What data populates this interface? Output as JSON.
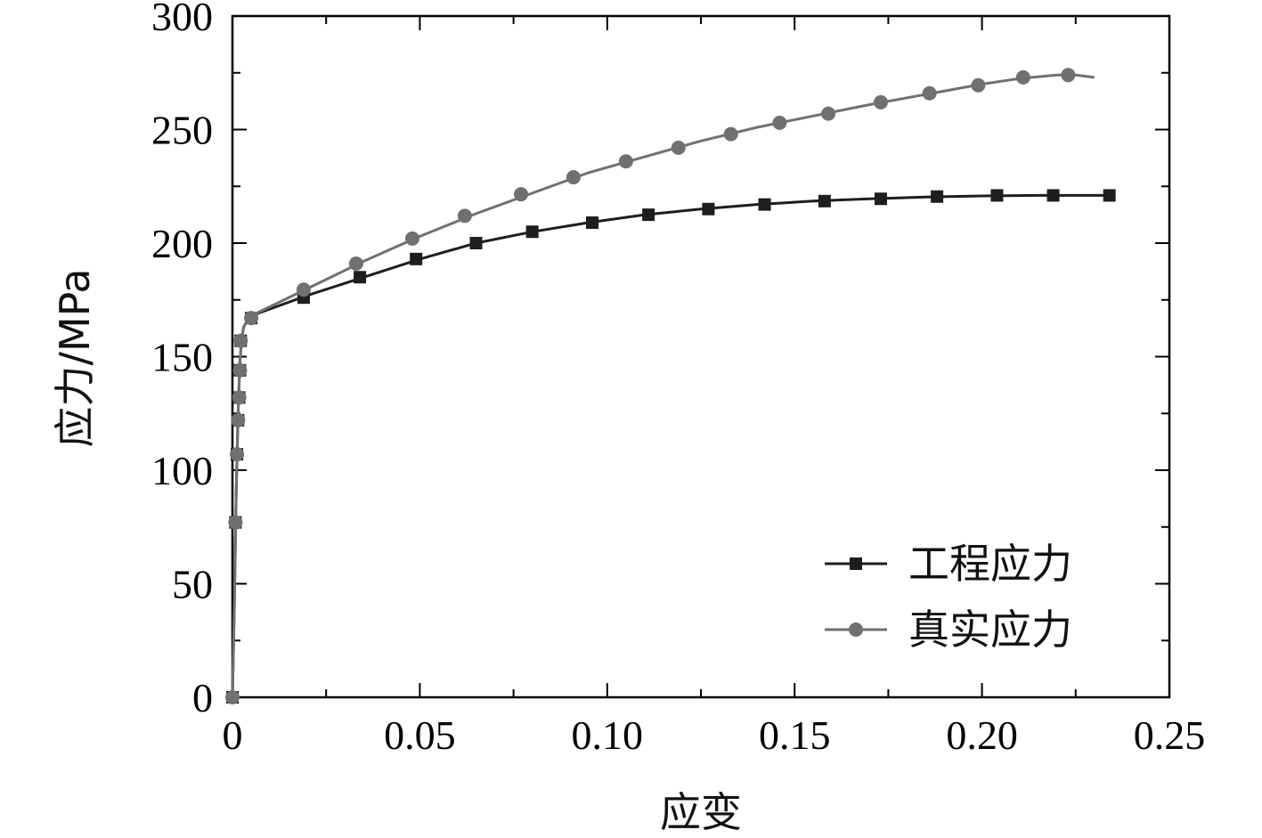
{
  "chart_data": {
    "type": "line",
    "title": "",
    "xlabel": "应变",
    "ylabel": "应力/MPa",
    "xlim": [
      0,
      0.25
    ],
    "ylim": [
      0,
      300
    ],
    "x_ticks": [
      0,
      0.05,
      0.1,
      0.15,
      0.2,
      0.25
    ],
    "x_tick_labels": [
      "0",
      "0.05",
      "0.10",
      "0.15",
      "0.20",
      "0.25"
    ],
    "y_ticks": [
      0,
      50,
      100,
      150,
      200,
      250,
      300
    ],
    "y_tick_labels": [
      "0",
      "50",
      "100",
      "150",
      "200",
      "250",
      "300"
    ],
    "grid": false,
    "legend_position": "bottom-right",
    "series": [
      {
        "name": "工程应力",
        "color": "#1e1e1e",
        "marker": "square",
        "line_points": [
          [
            0,
            0
          ],
          [
            0.0005,
            40
          ],
          [
            0.001,
            90
          ],
          [
            0.0015,
            125
          ],
          [
            0.002,
            148
          ],
          [
            0.0025,
            158
          ],
          [
            0.003,
            163
          ],
          [
            0.004,
            166
          ],
          [
            0.005,
            168
          ],
          [
            0.01,
            171
          ],
          [
            0.02,
            177
          ],
          [
            0.035,
            185
          ],
          [
            0.05,
            193
          ],
          [
            0.065,
            200
          ],
          [
            0.08,
            205
          ],
          [
            0.095,
            209
          ],
          [
            0.11,
            212.5
          ],
          [
            0.125,
            215
          ],
          [
            0.14,
            217
          ],
          [
            0.155,
            218.5
          ],
          [
            0.17,
            219.5
          ],
          [
            0.185,
            220.3
          ],
          [
            0.2,
            220.8
          ],
          [
            0.215,
            221
          ],
          [
            0.235,
            221
          ]
        ],
        "marker_points": [
          [
            0,
            0
          ],
          [
            0.0008,
            77
          ],
          [
            0.0012,
            107
          ],
          [
            0.0015,
            122
          ],
          [
            0.0018,
            132
          ],
          [
            0.002,
            144
          ],
          [
            0.0022,
            157
          ],
          [
            0.005,
            167
          ],
          [
            0.019,
            176
          ],
          [
            0.034,
            185
          ],
          [
            0.049,
            193
          ],
          [
            0.065,
            200
          ],
          [
            0.08,
            205
          ],
          [
            0.096,
            209
          ],
          [
            0.111,
            212.5
          ],
          [
            0.127,
            215
          ],
          [
            0.142,
            217
          ],
          [
            0.158,
            218.5
          ],
          [
            0.173,
            219.5
          ],
          [
            0.188,
            220.5
          ],
          [
            0.204,
            221
          ],
          [
            0.219,
            221
          ],
          [
            0.234,
            221
          ]
        ]
      },
      {
        "name": "真实应力",
        "color": "#707070",
        "marker": "circle",
        "line_points": [
          [
            0,
            0
          ],
          [
            0.0005,
            40
          ],
          [
            0.001,
            90
          ],
          [
            0.0015,
            125
          ],
          [
            0.002,
            148
          ],
          [
            0.0025,
            158
          ],
          [
            0.003,
            163
          ],
          [
            0.004,
            166
          ],
          [
            0.005,
            168
          ],
          [
            0.01,
            172
          ],
          [
            0.02,
            180
          ],
          [
            0.035,
            192
          ],
          [
            0.05,
            203
          ],
          [
            0.065,
            213
          ],
          [
            0.08,
            222
          ],
          [
            0.095,
            231
          ],
          [
            0.11,
            238
          ],
          [
            0.125,
            245
          ],
          [
            0.14,
            251
          ],
          [
            0.155,
            256
          ],
          [
            0.17,
            261
          ],
          [
            0.185,
            265.5
          ],
          [
            0.2,
            270
          ],
          [
            0.21,
            272.5
          ],
          [
            0.22,
            274
          ],
          [
            0.225,
            274
          ],
          [
            0.23,
            273
          ]
        ],
        "marker_points": [
          [
            0,
            0
          ],
          [
            0.0008,
            77
          ],
          [
            0.0012,
            107
          ],
          [
            0.0015,
            122
          ],
          [
            0.0018,
            132
          ],
          [
            0.002,
            144
          ],
          [
            0.0022,
            157
          ],
          [
            0.005,
            167
          ],
          [
            0.019,
            179.5
          ],
          [
            0.033,
            191
          ],
          [
            0.048,
            202
          ],
          [
            0.062,
            212
          ],
          [
            0.077,
            221.5
          ],
          [
            0.091,
            229
          ],
          [
            0.105,
            236
          ],
          [
            0.119,
            242
          ],
          [
            0.133,
            248
          ],
          [
            0.146,
            253
          ],
          [
            0.159,
            257
          ],
          [
            0.173,
            262
          ],
          [
            0.186,
            266
          ],
          [
            0.199,
            269.5
          ],
          [
            0.211,
            273
          ],
          [
            0.223,
            274
          ]
        ]
      }
    ]
  }
}
